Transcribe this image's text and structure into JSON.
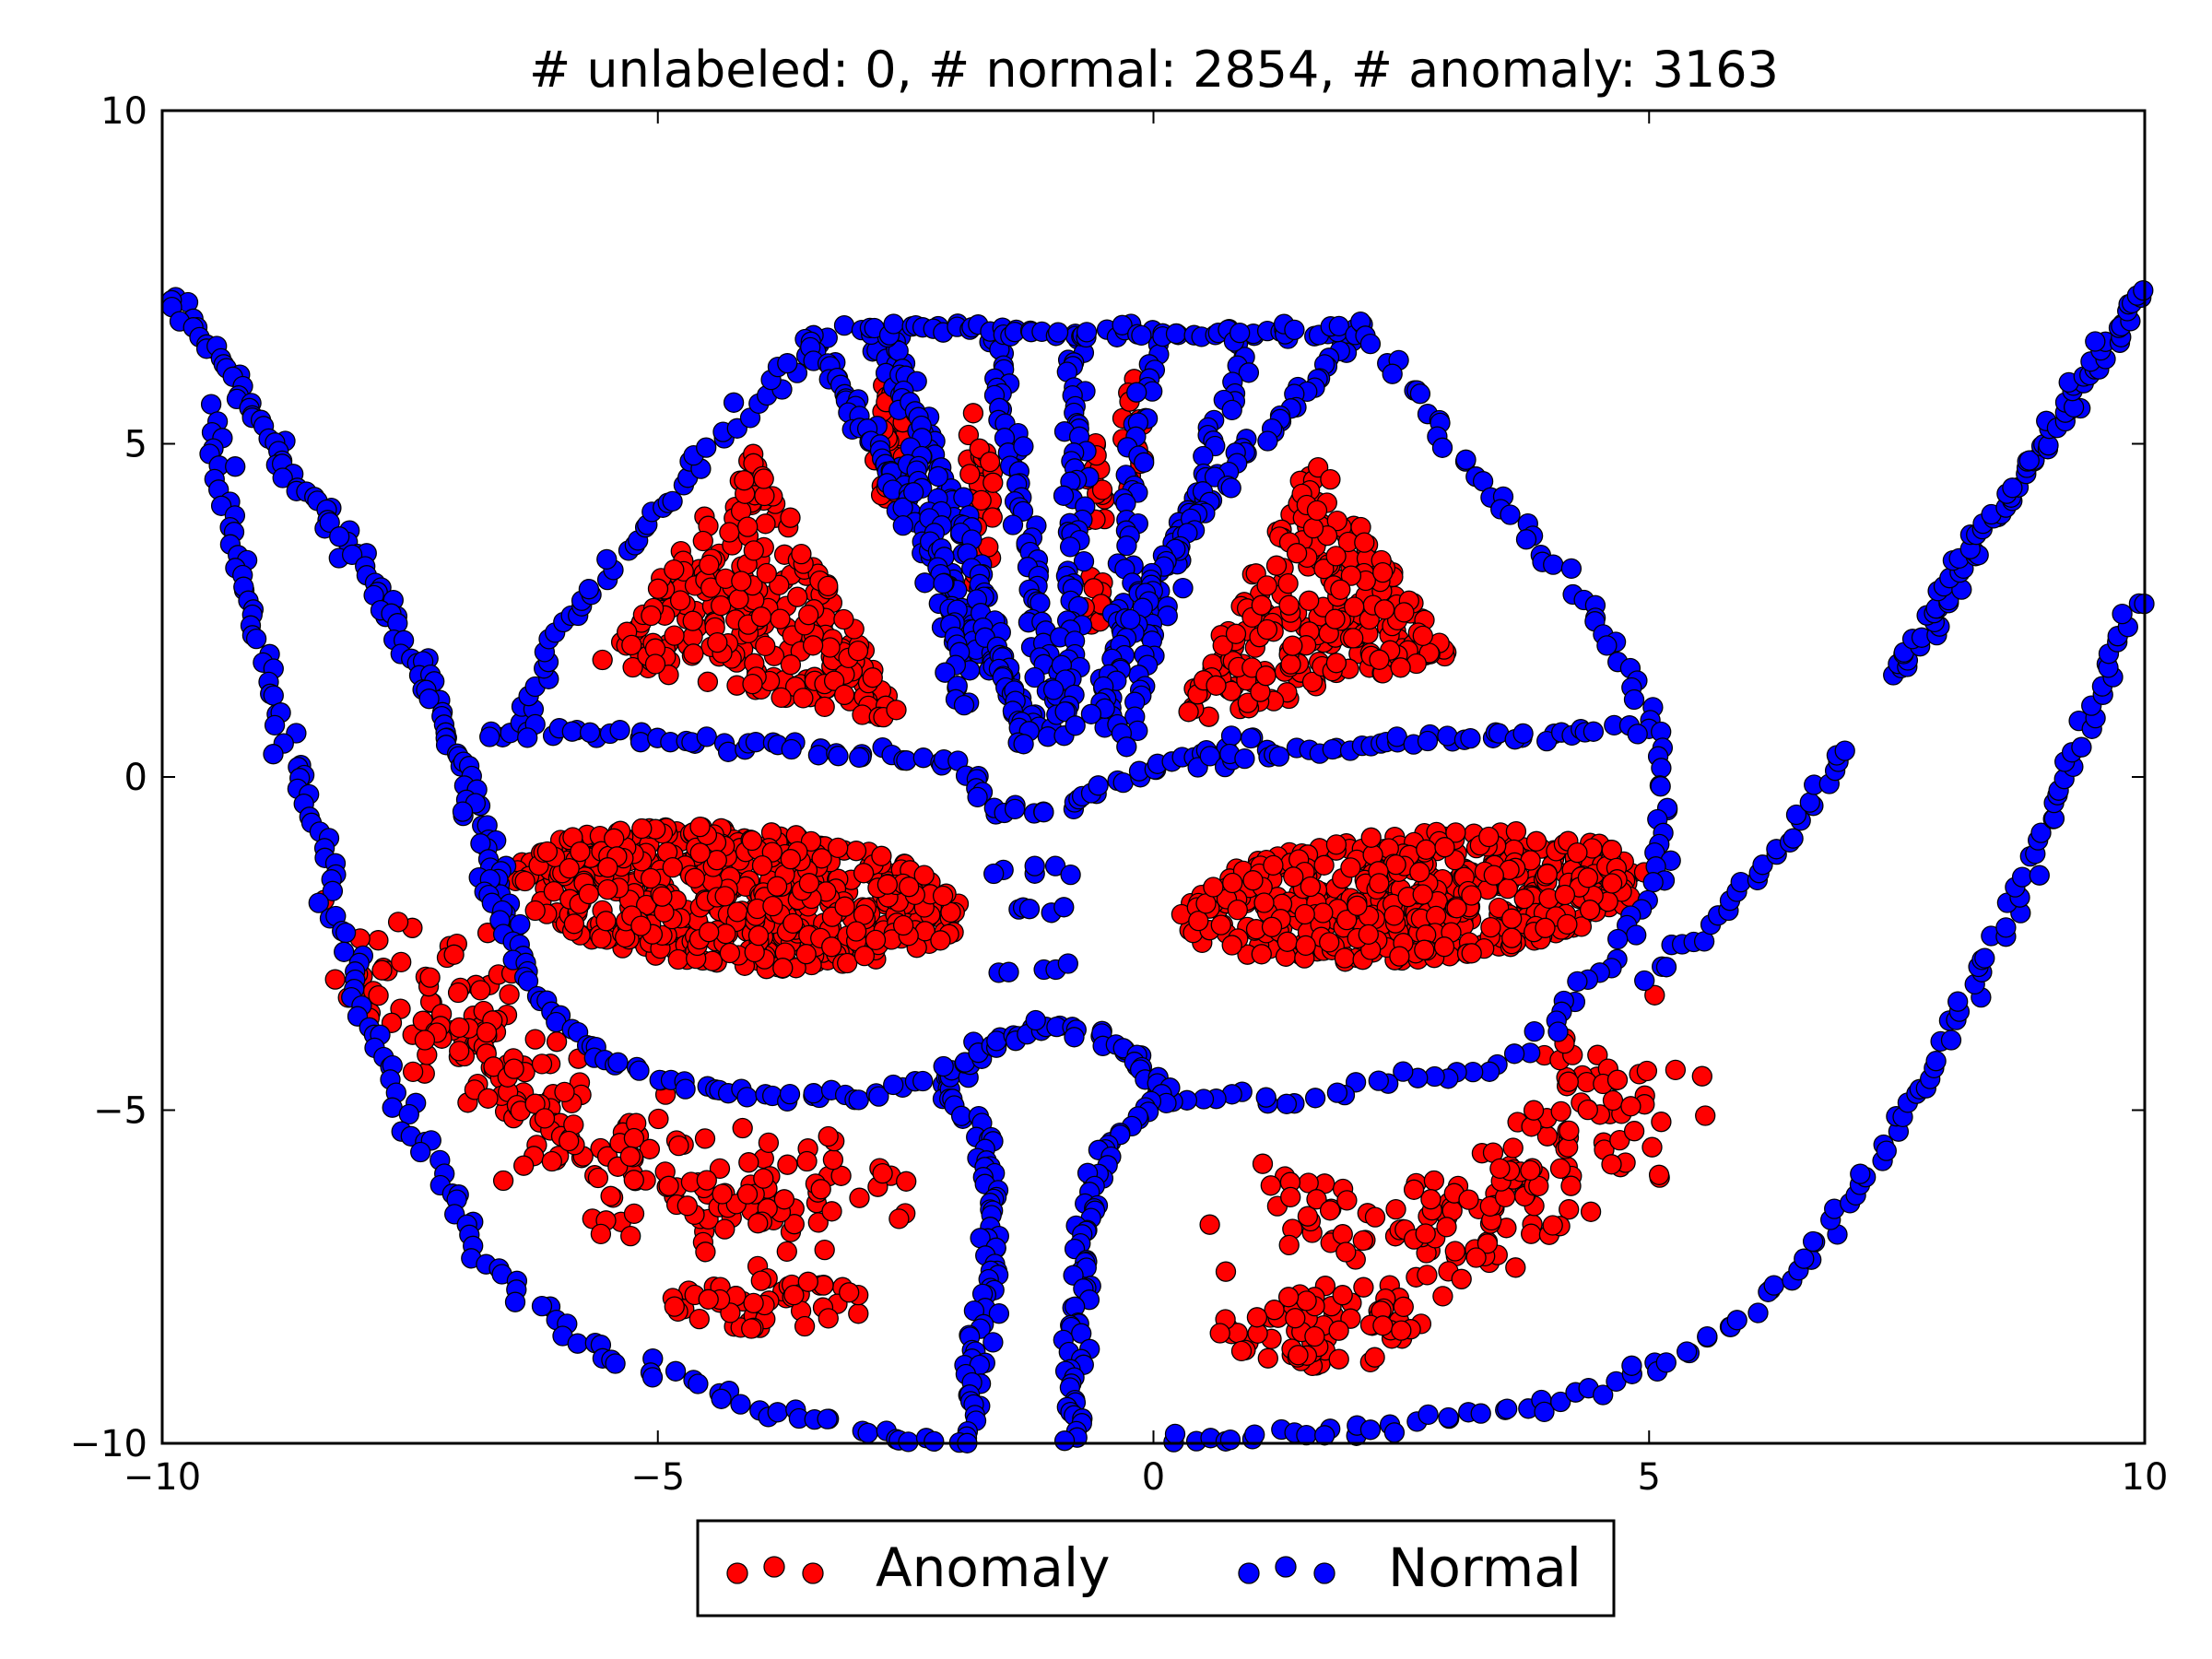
{
  "chart_data": {
    "type": "scatter",
    "title": "# unlabeled: 0, # normal: 2854, # anomaly: 3163",
    "xlabel": "",
    "ylabel": "",
    "xlim": [
      -10,
      10
    ],
    "ylim": [
      -10,
      10
    ],
    "x_ticks": [
      -10,
      -5,
      0,
      5,
      10
    ],
    "y_ticks": [
      -10,
      -5,
      0,
      5,
      10
    ],
    "x_tick_labels": [
      "−10",
      "−5",
      "0",
      "5",
      "10"
    ],
    "y_tick_labels": [
      "−10",
      "−5",
      "0",
      "5",
      "10"
    ],
    "grid": false,
    "legend_position": "bottom-center-outside",
    "series": [
      {
        "name": "Anomaly",
        "color": "#ff0000",
        "clusters": [
          {
            "shape": "ellipse",
            "cx": -4.2,
            "cy": -1.8,
            "rx": 2.3,
            "ry": 1.05,
            "angle": -8,
            "n": 560
          },
          {
            "shape": "ellipse",
            "cx": 2.6,
            "cy": -1.8,
            "rx": 2.4,
            "ry": 0.95,
            "angle": 8,
            "n": 520
          },
          {
            "shape": "triangle",
            "vertices": [
              [
                -4.0,
                5.0
              ],
              [
                -5.6,
                1.7
              ],
              [
                -2.5,
                0.8
              ]
            ],
            "n": 260
          },
          {
            "shape": "triangle",
            "vertices": [
              [
                1.6,
                4.9
              ],
              [
                3.0,
                1.8
              ],
              [
                0.2,
                0.7
              ]
            ],
            "n": 240
          },
          {
            "shape": "band",
            "points": [
              [
                -7.7,
                -2.6
              ],
              [
                -6.8,
                -4.2
              ],
              [
                -5.6,
                -5.6
              ],
              [
                -4.4,
                -6.5
              ],
              [
                -3.0,
                -6.0
              ]
            ],
            "width": 0.9,
            "n": 240
          },
          {
            "shape": "ellipse",
            "cx": -3.9,
            "cy": -7.9,
            "rx": 1.0,
            "ry": 0.4,
            "angle": 0,
            "n": 50
          },
          {
            "shape": "band",
            "points": [
              [
                1.5,
                -6.6
              ],
              [
                2.8,
                -7.0
              ],
              [
                3.6,
                -6.5
              ],
              [
                4.3,
                -5.4
              ],
              [
                4.6,
                -4.3
              ]
            ],
            "width": 0.9,
            "n": 170
          },
          {
            "shape": "ellipse",
            "cx": 1.7,
            "cy": -8.3,
            "rx": 1.1,
            "ry": 0.55,
            "angle": 0,
            "n": 70
          },
          {
            "shape": "ellipse",
            "cx": -2.65,
            "cy": 5.1,
            "rx": 0.2,
            "ry": 1.0,
            "angle": 0,
            "n": 40
          },
          {
            "shape": "ellipse",
            "cx": -1.75,
            "cy": 4.2,
            "rx": 0.15,
            "ry": 1.6,
            "angle": 0,
            "n": 30
          },
          {
            "shape": "ellipse",
            "cx": -0.6,
            "cy": 3.6,
            "rx": 0.12,
            "ry": 1.8,
            "angle": 0,
            "n": 25
          },
          {
            "shape": "ellipse",
            "cx": -0.2,
            "cy": 5.1,
            "rx": 0.12,
            "ry": 1.0,
            "angle": 0,
            "n": 15
          },
          {
            "shape": "ellipse",
            "cx": -1.9,
            "cy": 2.2,
            "rx": 0.15,
            "ry": 0.4,
            "angle": 0,
            "n": 10
          }
        ]
      },
      {
        "name": "Normal",
        "color": "#0000ff",
        "clusters": [
          {
            "shape": "polyline",
            "points": [
              [
                -10.0,
                7.3
              ],
              [
                -9.3,
                6.0
              ],
              [
                -8.7,
                4.6
              ],
              [
                -8.0,
                3.2
              ],
              [
                -7.4,
                1.6
              ],
              [
                -6.9,
                0.0
              ],
              [
                -6.6,
                -1.6
              ],
              [
                -6.5,
                -2.3
              ]
            ],
            "n": 120
          },
          {
            "shape": "polyline",
            "points": [
              [
                -9.5,
                5.5
              ],
              [
                -9.2,
                3.0
              ],
              [
                -8.8,
                0.8
              ],
              [
                -8.4,
                -1.2
              ],
              [
                -8.0,
                -3.5
              ],
              [
                -7.5,
                -5.2
              ],
              [
                -6.8,
                -7.2
              ],
              [
                -5.8,
                -8.5
              ],
              [
                -4.0,
                -9.5
              ],
              [
                -2.5,
                -9.9
              ]
            ],
            "n": 140
          },
          {
            "shape": "polyline",
            "points": [
              [
                -6.5,
                0.6
              ],
              [
                -6.0,
                2.2
              ],
              [
                -5.2,
                3.6
              ],
              [
                -4.4,
                5.0
              ],
              [
                -3.6,
                6.3
              ],
              [
                -3.2,
                6.8
              ]
            ],
            "n": 55
          },
          {
            "shape": "polyline",
            "points": [
              [
                -6.6,
                0.7
              ],
              [
                -4.0,
                0.5
              ],
              [
                -2.0,
                0.2
              ],
              [
                -1.5,
                -0.5
              ]
            ],
            "n": 55
          },
          {
            "shape": "polyline",
            "points": [
              [
                -6.7,
                -1.5
              ],
              [
                -6.3,
                -3.2
              ],
              [
                -5.5,
                -4.3
              ],
              [
                -4.0,
                -4.8
              ],
              [
                -3.0,
                -4.8
              ],
              [
                -2.0,
                -4.5
              ]
            ],
            "n": 65
          },
          {
            "shape": "polyline",
            "points": [
              [
                -3.5,
                6.7
              ],
              [
                -2.8,
                5.0
              ],
              [
                -2.2,
                3.3
              ],
              [
                -1.6,
                1.6
              ],
              [
                -1.0,
                0.6
              ]
            ],
            "n": 100
          },
          {
            "shape": "polyline",
            "points": [
              [
                -2.8,
                6.6
              ],
              [
                -2.0,
                4.2
              ],
              [
                -1.6,
                2.0
              ],
              [
                -1.3,
                0.5
              ]
            ],
            "n": 80
          },
          {
            "shape": "polyline",
            "points": [
              [
                -2.6,
                6.6
              ],
              [
                -2.2,
                3.5
              ],
              [
                -1.9,
                1.0
              ]
            ],
            "n": 60
          },
          {
            "shape": "polyline",
            "points": [
              [
                -1.6,
                6.6
              ],
              [
                -1.3,
                3.8
              ],
              [
                -1.0,
                1.0
              ]
            ],
            "n": 60
          },
          {
            "shape": "polyline",
            "points": [
              [
                -0.8,
                6.6
              ],
              [
                -0.8,
                3.5
              ],
              [
                -0.9,
                0.8
              ]
            ],
            "n": 60
          },
          {
            "shape": "polyline",
            "points": [
              [
                0.0,
                6.6
              ],
              [
                -0.3,
                3.0
              ],
              [
                -0.5,
                0.8
              ]
            ],
            "n": 50
          },
          {
            "shape": "polyline",
            "points": [
              [
                1.0,
                6.6
              ],
              [
                0.2,
                3.5
              ],
              [
                -0.3,
                0.5
              ]
            ],
            "n": 55
          },
          {
            "shape": "polyline",
            "points": [
              [
                2.1,
                6.7
              ],
              [
                1.0,
                5.0
              ],
              [
                0.0,
                3.0
              ],
              [
                -0.6,
                1.0
              ]
            ],
            "n": 75
          },
          {
            "shape": "polyline",
            "points": [
              [
                -3.0,
                6.7
              ],
              [
                0.0,
                6.65
              ],
              [
                2.1,
                6.7
              ]
            ],
            "n": 70
          },
          {
            "shape": "polyline",
            "points": [
              [
                -1.5,
                -0.5
              ],
              [
                -1.0,
                -0.5
              ],
              [
                -0.3,
                0.0
              ],
              [
                0.5,
                0.4
              ],
              [
                1.0,
                0.6
              ]
            ],
            "n": 30
          },
          {
            "shape": "polyline",
            "points": [
              [
                2.1,
                6.7
              ],
              [
                2.8,
                5.4
              ],
              [
                3.6,
                4.0
              ],
              [
                4.4,
                2.6
              ],
              [
                4.9,
                1.2
              ],
              [
                5.2,
                0.0
              ],
              [
                5.1,
                -1.5
              ],
              [
                4.6,
                -2.8
              ],
              [
                3.6,
                -4.3
              ],
              [
                1.5,
                -4.8
              ],
              [
                0.0,
                -4.8
              ]
            ],
            "n": 105
          },
          {
            "shape": "polyline",
            "points": [
              [
                0.5,
                0.2
              ],
              [
                3.0,
                0.6
              ],
              [
                4.8,
                0.7
              ]
            ],
            "n": 45
          },
          {
            "shape": "polyline",
            "points": [
              [
                -2.2,
                -4.7
              ],
              [
                -1.7,
                -4.0
              ],
              [
                -1.0,
                -3.7
              ],
              [
                -0.4,
                -4.0
              ],
              [
                0.1,
                -4.7
              ]
            ],
            "n": 50
          },
          {
            "shape": "polyline",
            "points": [
              [
                -2.0,
                -4.8
              ],
              [
                -1.7,
                -5.5
              ],
              [
                -1.6,
                -7.0
              ],
              [
                -1.8,
                -8.8
              ],
              [
                -1.8,
                -10.0
              ]
            ],
            "n": 70
          },
          {
            "shape": "polyline",
            "points": [
              [
                0.1,
                -4.8
              ],
              [
                -0.5,
                -5.5
              ],
              [
                -0.7,
                -7.0
              ],
              [
                -0.8,
                -8.8
              ],
              [
                -0.8,
                -10.0
              ]
            ],
            "n": 70
          },
          {
            "shape": "polyline",
            "points": [
              [
                -1.6,
                -1.4
              ],
              [
                -0.8,
                -1.4
              ]
            ],
            "n": 6
          },
          {
            "shape": "polyline",
            "points": [
              [
                -1.5,
                -2.0
              ],
              [
                -0.9,
                -2.0
              ]
            ],
            "n": 5
          },
          {
            "shape": "polyline",
            "points": [
              [
                -1.5,
                -2.9
              ],
              [
                -0.9,
                -2.9
              ]
            ],
            "n": 5
          },
          {
            "shape": "polyline",
            "points": [
              [
                0.0,
                -10.0
              ],
              [
                2.0,
                -9.8
              ],
              [
                4.0,
                -9.4
              ],
              [
                5.6,
                -8.5
              ],
              [
                6.5,
                -7.5
              ],
              [
                7.3,
                -5.8
              ],
              [
                8.0,
                -4.0
              ],
              [
                8.7,
                -2.0
              ],
              [
                9.4,
                0.8
              ],
              [
                10.0,
                2.8
              ]
            ],
            "n": 130
          },
          {
            "shape": "polyline",
            "points": [
              [
                5.0,
                -3.0
              ],
              [
                6.0,
                -1.7
              ],
              [
                7.0,
                0.4
              ]
            ],
            "n": 30
          },
          {
            "shape": "polyline",
            "points": [
              [
                7.5,
                1.5
              ],
              [
                8.3,
                3.5
              ],
              [
                9.2,
                5.5
              ],
              [
                10.0,
                7.4
              ]
            ],
            "n": 90
          },
          {
            "shape": "polyline",
            "points": [
              [
                -2.5,
                -9.9
              ],
              [
                -1.8,
                -9.95
              ]
            ],
            "n": 6
          }
        ]
      }
    ]
  }
}
